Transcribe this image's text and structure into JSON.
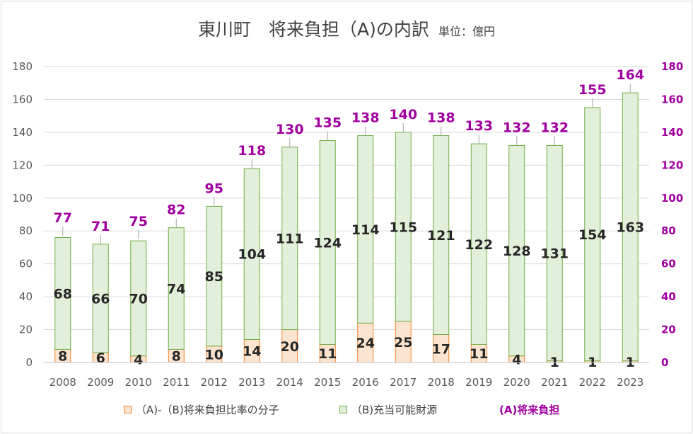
{
  "chart_data": {
    "type": "bar",
    "stacked": true,
    "title": "東川町　将来負担（A)の内訳",
    "unit_label": "単位：億円",
    "categories": [
      "2008",
      "2009",
      "2010",
      "2011",
      "2012",
      "2013",
      "2014",
      "2015",
      "2016",
      "2017",
      "2018",
      "2019",
      "2020",
      "2021",
      "2022",
      "2023"
    ],
    "series": [
      {
        "name": "（A)-（B)将来負担比率の分子",
        "values": [
          8,
          6,
          4,
          8,
          10,
          14,
          20,
          11,
          24,
          25,
          17,
          11,
          4,
          1,
          1,
          1
        ],
        "color": "#f5822a",
        "fill": "#fde4d0"
      },
      {
        "name": "（B)充当可能財源",
        "values": [
          68,
          66,
          70,
          74,
          85,
          104,
          111,
          124,
          114,
          115,
          121,
          122,
          128,
          131,
          154,
          163
        ],
        "color": "#70ad47",
        "fill": "#e2efda"
      }
    ],
    "totals": {
      "name": "(A)将来負担",
      "values": [
        77,
        71,
        75,
        82,
        95,
        118,
        130,
        135,
        138,
        140,
        138,
        133,
        132,
        132,
        155,
        164
      ],
      "color": "#a000a0"
    },
    "ylim": [
      0,
      180
    ],
    "yticks": [
      0,
      20,
      40,
      60,
      80,
      100,
      120,
      140,
      160,
      180
    ],
    "y2ticks": [
      0,
      20,
      40,
      60,
      80,
      100,
      120,
      140,
      160,
      180
    ],
    "axis_color": "#595959",
    "grid": true,
    "legend_position": "bottom"
  }
}
